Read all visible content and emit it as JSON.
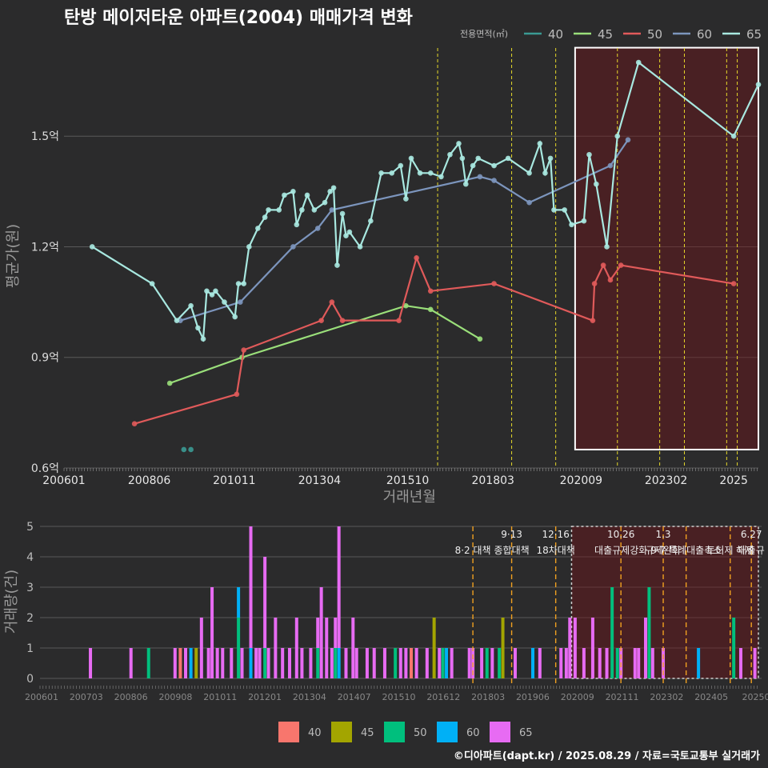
{
  "title": "탄방 메이저타운 아파트(2004) 매매가격 변화",
  "footer": "©디아파트(dapt.kr) / 2025.08.29 / 자료=국토교통부 실거래가",
  "chart_data": [
    {
      "type": "line",
      "title": "탄방 메이저타운 아파트(2004) 매매가격 변화",
      "xlabel": "거래년월",
      "ylabel": "평균가(원)",
      "legend_title": "전용면적(㎡)",
      "legend_position": "top-right",
      "x_tick_labels": [
        "200601",
        "200806",
        "201011",
        "201304",
        "201510",
        "201803",
        "202009",
        "202302",
        "2025"
      ],
      "y_tick_labels": [
        "0.6억",
        "0.9억",
        "1.2억",
        "1.5억"
      ],
      "ylim": [
        0.6,
        1.75
      ],
      "y_unit": "억원",
      "policy_dates": [
        2016.6,
        2018.7,
        2019.95,
        2021.7,
        2022.9,
        2023.6,
        2024.8,
        2025.1
      ],
      "shaded_period": [
        2020.5,
        2025.7
      ],
      "series": [
        {
          "name": "40",
          "color": "#3b9a93",
          "points": [
            [
              2009.4,
              0.65
            ],
            [
              2009.6,
              0.65
            ]
          ]
        },
        {
          "name": "45",
          "color": "#9adf7a",
          "points": [
            [
              2009.0,
              0.83
            ],
            [
              2011.05,
              0.9
            ],
            [
              2015.7,
              1.04
            ],
            [
              2016.4,
              1.03
            ],
            [
              2017.8,
              0.95
            ]
          ]
        },
        {
          "name": "50",
          "color": "#e05a5a",
          "points": [
            [
              2008.0,
              0.72
            ],
            [
              2010.9,
              0.8
            ],
            [
              2011.1,
              0.92
            ],
            [
              2013.3,
              1.0
            ],
            [
              2013.6,
              1.05
            ],
            [
              2013.9,
              1.0
            ],
            [
              2015.5,
              1.0
            ],
            [
              2016.0,
              1.17
            ],
            [
              2016.4,
              1.08
            ],
            [
              2018.2,
              1.1
            ],
            [
              2021.0,
              1.0
            ],
            [
              2021.05,
              1.1
            ],
            [
              2021.3,
              1.15
            ],
            [
              2021.5,
              1.11
            ],
            [
              2021.8,
              1.15
            ],
            [
              2025.0,
              1.1
            ]
          ]
        },
        {
          "name": "60",
          "color": "#7c95bd",
          "points": [
            [
              2009.3,
              1.0
            ],
            [
              2011.0,
              1.05
            ],
            [
              2012.5,
              1.2
            ],
            [
              2013.2,
              1.25
            ],
            [
              2013.6,
              1.3
            ],
            [
              2017.8,
              1.39
            ],
            [
              2018.2,
              1.38
            ],
            [
              2019.2,
              1.32
            ],
            [
              2021.5,
              1.42
            ],
            [
              2022.0,
              1.49
            ]
          ]
        },
        {
          "name": "65",
          "color": "#a8e8e0",
          "points": [
            [
              2006.8,
              1.2
            ],
            [
              2008.5,
              1.1
            ],
            [
              2009.2,
              1.0
            ],
            [
              2009.6,
              1.04
            ],
            [
              2009.8,
              0.98
            ],
            [
              2009.95,
              0.95
            ],
            [
              2010.05,
              1.08
            ],
            [
              2010.2,
              1.07
            ],
            [
              2010.3,
              1.08
            ],
            [
              2010.55,
              1.05
            ],
            [
              2010.85,
              1.01
            ],
            [
              2010.95,
              1.1
            ],
            [
              2011.1,
              1.1
            ],
            [
              2011.25,
              1.2
            ],
            [
              2011.5,
              1.25
            ],
            [
              2011.7,
              1.28
            ],
            [
              2011.8,
              1.3
            ],
            [
              2012.1,
              1.3
            ],
            [
              2012.25,
              1.34
            ],
            [
              2012.5,
              1.35
            ],
            [
              2012.6,
              1.26
            ],
            [
              2012.75,
              1.3
            ],
            [
              2012.9,
              1.34
            ],
            [
              2013.1,
              1.3
            ],
            [
              2013.4,
              1.32
            ],
            [
              2013.55,
              1.35
            ],
            [
              2013.65,
              1.36
            ],
            [
              2013.75,
              1.15
            ],
            [
              2013.9,
              1.29
            ],
            [
              2014.0,
              1.23
            ],
            [
              2014.1,
              1.24
            ],
            [
              2014.4,
              1.2
            ],
            [
              2014.7,
              1.27
            ],
            [
              2015.0,
              1.4
            ],
            [
              2015.3,
              1.4
            ],
            [
              2015.55,
              1.42
            ],
            [
              2015.7,
              1.33
            ],
            [
              2015.85,
              1.44
            ],
            [
              2016.1,
              1.4
            ],
            [
              2016.4,
              1.4
            ],
            [
              2016.7,
              1.39
            ],
            [
              2016.95,
              1.45
            ],
            [
              2017.2,
              1.48
            ],
            [
              2017.3,
              1.44
            ],
            [
              2017.4,
              1.37
            ],
            [
              2017.6,
              1.42
            ],
            [
              2017.75,
              1.44
            ],
            [
              2018.2,
              1.42
            ],
            [
              2018.6,
              1.44
            ],
            [
              2019.2,
              1.4
            ],
            [
              2019.5,
              1.48
            ],
            [
              2019.65,
              1.4
            ],
            [
              2019.8,
              1.44
            ],
            [
              2019.9,
              1.3
            ],
            [
              2020.2,
              1.3
            ],
            [
              2020.4,
              1.26
            ],
            [
              2020.75,
              1.27
            ],
            [
              2020.9,
              1.45
            ],
            [
              2021.1,
              1.37
            ],
            [
              2021.4,
              1.2
            ],
            [
              2021.7,
              1.5
            ],
            [
              2022.3,
              1.7
            ],
            [
              2025.0,
              1.5
            ],
            [
              2025.7,
              1.64
            ]
          ]
        }
      ]
    },
    {
      "type": "bar",
      "stacked": true,
      "xlabel": "",
      "ylabel": "거래량(건)",
      "x_tick_labels": [
        "200601",
        "200703",
        "200806",
        "200908",
        "201011",
        "201201",
        "201304",
        "201407",
        "201510",
        "201612",
        "201803",
        "201906",
        "202009",
        "202111",
        "202302",
        "202405",
        "20250"
      ],
      "y_tick_labels": [
        "0",
        "1",
        "2",
        "3",
        "4",
        "5"
      ],
      "ylim": [
        0,
        5
      ],
      "legend_position": "bottom",
      "colors": {
        "40": "#f8766d",
        "45": "#a3a500",
        "50": "#00bf7d",
        "60": "#00b0f6",
        "65": "#e76bf3"
      },
      "policy_annotations": [
        {
          "x": 2017.6,
          "date": "",
          "label": "8·2 대책"
        },
        {
          "x": 2018.7,
          "date": "9·13",
          "label": "종합대책"
        },
        {
          "x": 2019.95,
          "date": "12·16",
          "label": "18차대책"
        },
        {
          "x": 2021.8,
          "date": "10.26",
          "label": "대출규제강화"
        },
        {
          "x": 2023.0,
          "date": "1.3",
          "label": "규제완화"
        },
        {
          "x": 2023.65,
          "date": "",
          "label": "9·7 특례대출축소"
        },
        {
          "x": 2024.9,
          "date": "",
          "label": "토허제 해제"
        },
        {
          "x": 2025.5,
          "date": "6.27",
          "label": "대출규"
        }
      ],
      "bars": [
        {
          "x": 2006.75,
          "65": 1
        },
        {
          "x": 2007.9,
          "65": 1
        },
        {
          "x": 2008.4,
          "50": 1
        },
        {
          "x": 2009.15,
          "65": 1
        },
        {
          "x": 2009.3,
          "40": 1
        },
        {
          "x": 2009.45,
          "65": 1
        },
        {
          "x": 2009.6,
          "60": 1
        },
        {
          "x": 2009.75,
          "45": 1
        },
        {
          "x": 2009.9,
          "65": 2
        },
        {
          "x": 2010.1,
          "65": 1
        },
        {
          "x": 2010.2,
          "65": 3
        },
        {
          "x": 2010.35,
          "65": 1
        },
        {
          "x": 2010.5,
          "65": 1
        },
        {
          "x": 2010.75,
          "65": 1
        },
        {
          "x": 2010.95,
          "60": 1,
          "50": 2
        },
        {
          "x": 2011.05,
          "65": 1
        },
        {
          "x": 2011.3,
          "60": 1,
          "65": 4
        },
        {
          "x": 2011.45,
          "65": 1
        },
        {
          "x": 2011.55,
          "65": 1
        },
        {
          "x": 2011.7,
          "50": 1,
          "65": 3
        },
        {
          "x": 2011.8,
          "65": 1
        },
        {
          "x": 2012.0,
          "65": 2
        },
        {
          "x": 2012.2,
          "65": 1
        },
        {
          "x": 2012.4,
          "65": 1
        },
        {
          "x": 2012.6,
          "65": 2
        },
        {
          "x": 2012.75,
          "65": 1
        },
        {
          "x": 2013.0,
          "65": 1
        },
        {
          "x": 2013.2,
          "50": 1,
          "65": 1
        },
        {
          "x": 2013.3,
          "65": 3
        },
        {
          "x": 2013.45,
          "65": 2
        },
        {
          "x": 2013.6,
          "65": 1
        },
        {
          "x": 2013.7,
          "65": 1,
          "50": 1
        },
        {
          "x": 2013.8,
          "60": 1,
          "65": 4
        },
        {
          "x": 2014.0,
          "65": 1
        },
        {
          "x": 2014.2,
          "65": 2
        },
        {
          "x": 2014.3,
          "65": 1
        },
        {
          "x": 2014.6,
          "65": 1
        },
        {
          "x": 2014.8,
          "65": 1
        },
        {
          "x": 2015.1,
          "65": 1
        },
        {
          "x": 2015.4,
          "50": 1
        },
        {
          "x": 2015.55,
          "65": 1
        },
        {
          "x": 2015.7,
          "65": 1
        },
        {
          "x": 2015.85,
          "40": 1
        },
        {
          "x": 2016.0,
          "65": 1
        },
        {
          "x": 2016.3,
          "65": 1
        },
        {
          "x": 2016.5,
          "45": 2
        },
        {
          "x": 2016.65,
          "65": 1
        },
        {
          "x": 2016.75,
          "50": 1
        },
        {
          "x": 2016.85,
          "60": 1
        },
        {
          "x": 2017.0,
          "65": 1
        },
        {
          "x": 2017.5,
          "65": 1
        },
        {
          "x": 2017.6,
          "65": 1
        },
        {
          "x": 2017.85,
          "65": 1
        },
        {
          "x": 2018.0,
          "50": 1
        },
        {
          "x": 2018.15,
          "65": 1
        },
        {
          "x": 2018.35,
          "50": 1
        },
        {
          "x": 2018.45,
          "45": 2
        },
        {
          "x": 2018.8,
          "65": 1
        },
        {
          "x": 2019.3,
          "60": 1
        },
        {
          "x": 2019.5,
          "65": 1
        },
        {
          "x": 2020.1,
          "65": 1
        },
        {
          "x": 2020.25,
          "65": 1
        },
        {
          "x": 2020.35,
          "65": 2
        },
        {
          "x": 2020.5,
          "65": 2
        },
        {
          "x": 2020.75,
          "65": 1
        },
        {
          "x": 2021.0,
          "65": 2
        },
        {
          "x": 2021.2,
          "65": 1
        },
        {
          "x": 2021.4,
          "65": 1
        },
        {
          "x": 2021.55,
          "50": 3
        },
        {
          "x": 2021.7,
          "50": 1
        },
        {
          "x": 2021.8,
          "65": 1
        },
        {
          "x": 2022.2,
          "65": 1
        },
        {
          "x": 2022.3,
          "65": 1
        },
        {
          "x": 2022.5,
          "65": 2
        },
        {
          "x": 2022.6,
          "50": 3
        },
        {
          "x": 2022.7,
          "65": 1
        },
        {
          "x": 2023.0,
          "65": 1
        },
        {
          "x": 2024.0,
          "60": 1
        },
        {
          "x": 2025.0,
          "50": 2
        },
        {
          "x": 2025.2,
          "65": 1
        },
        {
          "x": 2025.6,
          "65": 1
        }
      ],
      "legend": [
        "40",
        "45",
        "50",
        "60",
        "65"
      ]
    }
  ]
}
